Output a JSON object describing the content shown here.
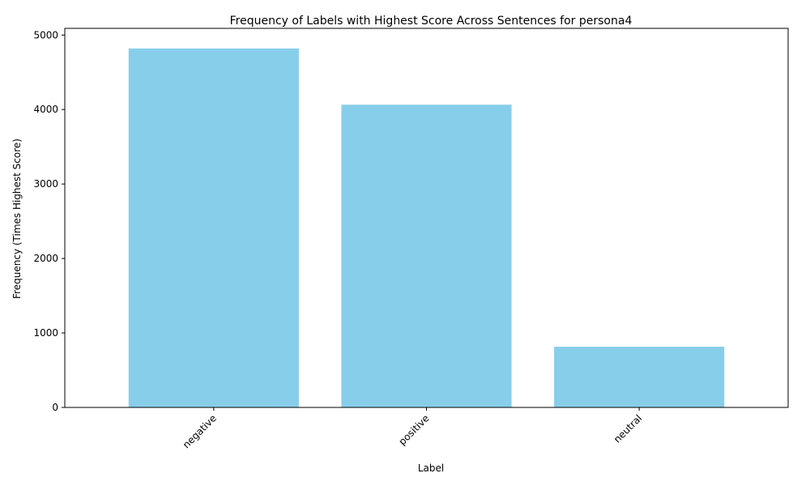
{
  "chart_data": {
    "type": "bar",
    "title": "Frequency of Labels with Highest Score Across Sentences for persona4",
    "xlabel": "Label",
    "ylabel": "Frequency (Times Highest Score)",
    "categories": [
      "negative",
      "positive",
      "neutral"
    ],
    "values": [
      4820,
      4065,
      815
    ],
    "ylim": [
      0,
      5090
    ],
    "yticks": [
      0,
      1000,
      2000,
      3000,
      4000,
      5000
    ],
    "bar_color": "#87ceeb",
    "grid": false,
    "legend": "none",
    "xtick_rotation": "45°"
  }
}
